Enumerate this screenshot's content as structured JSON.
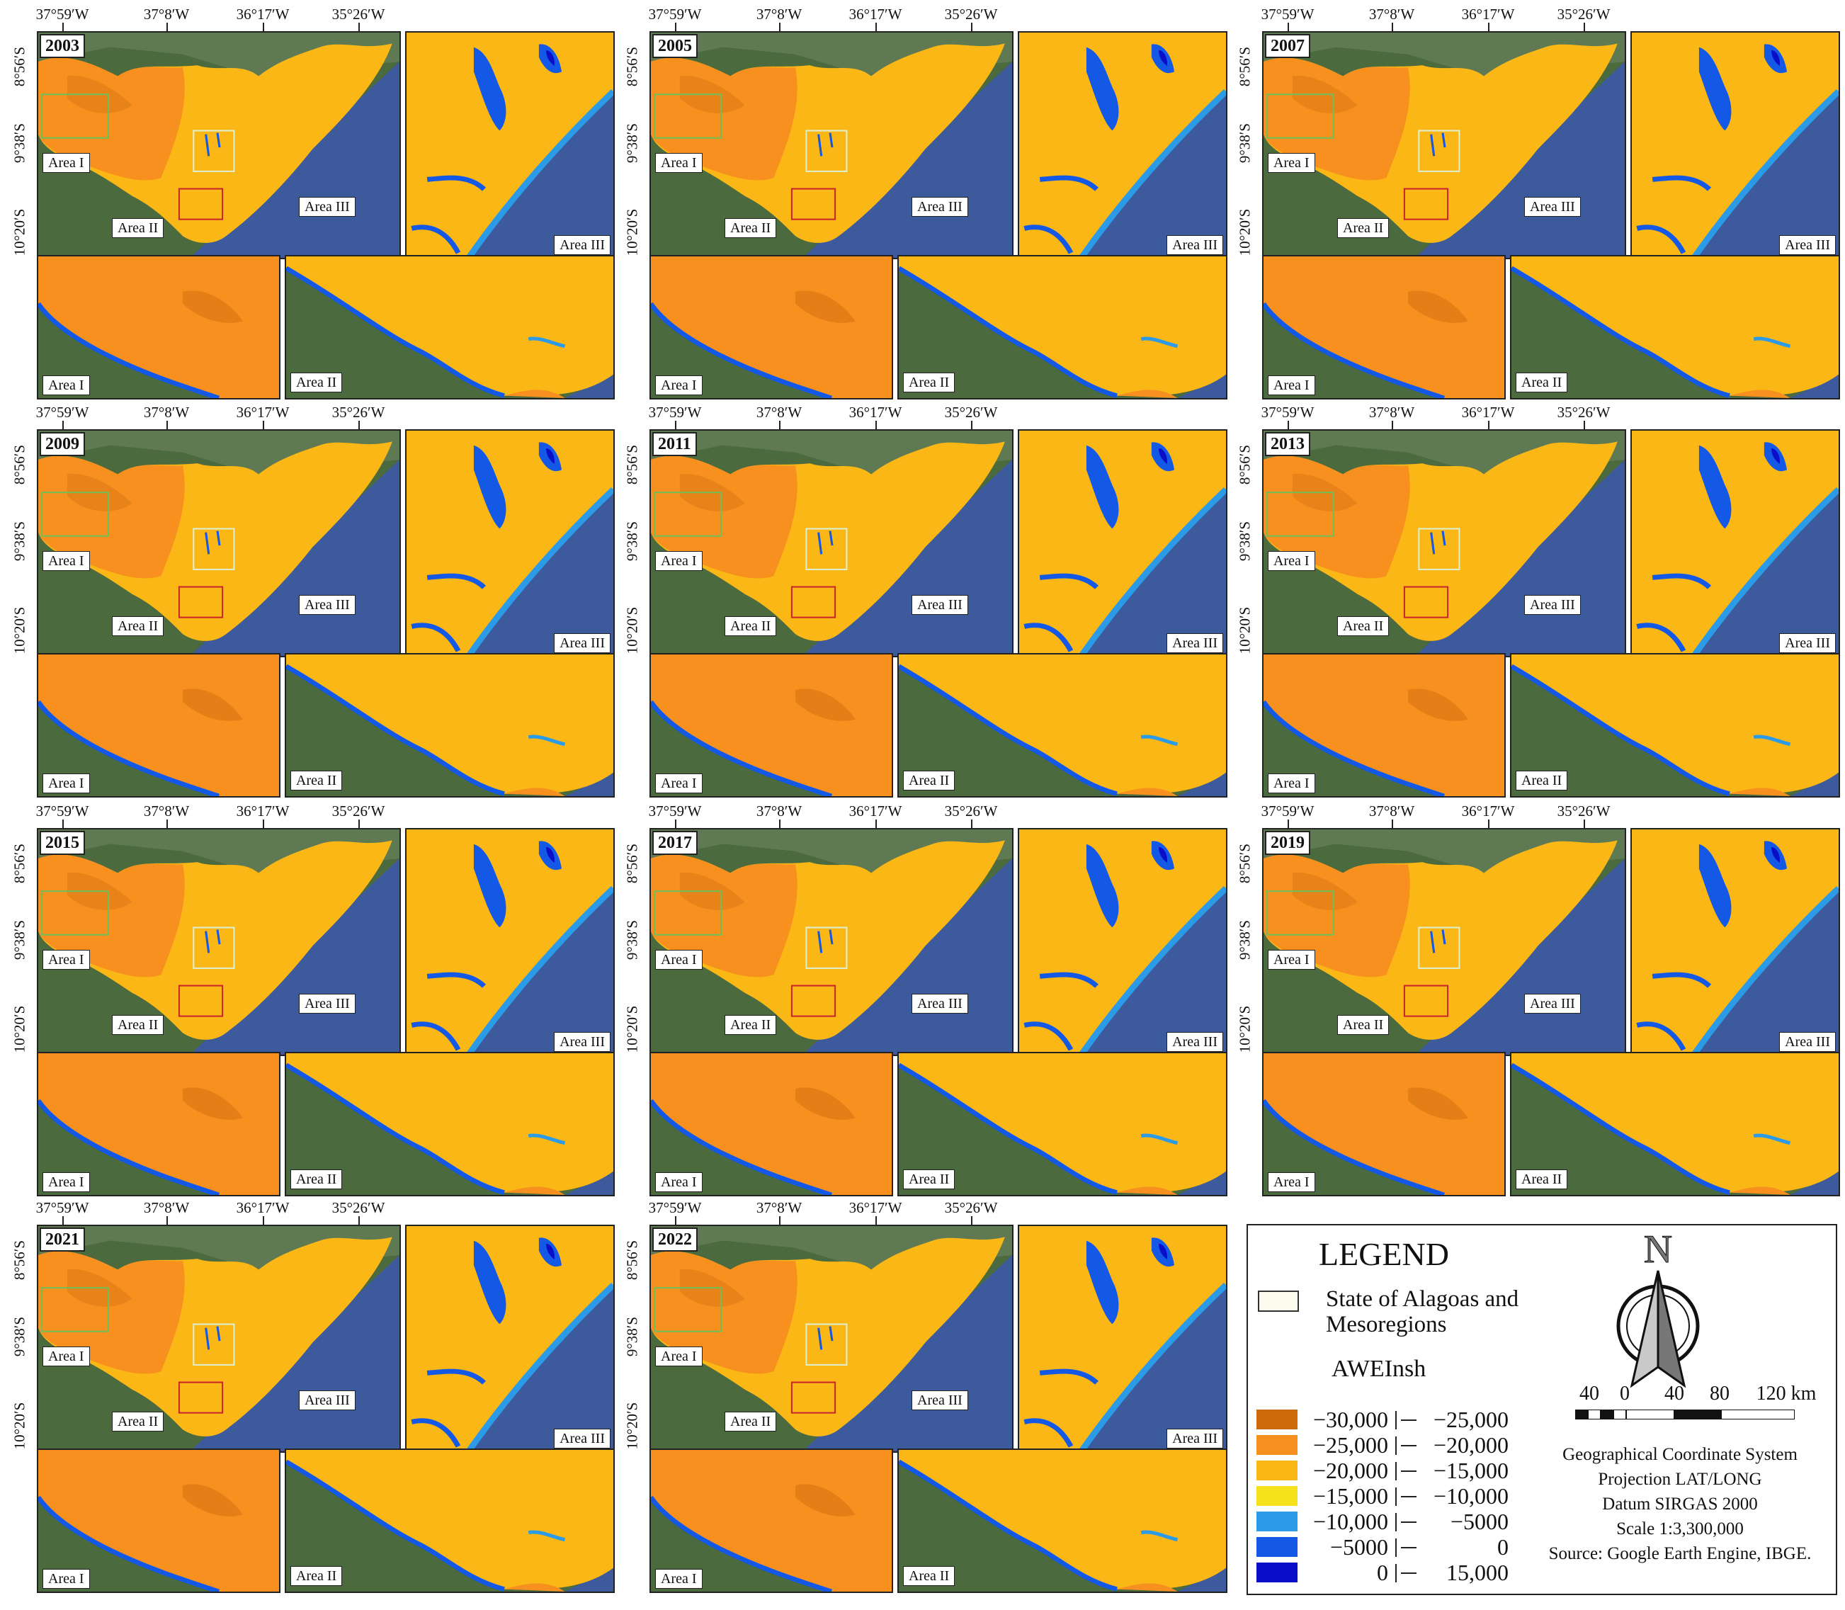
{
  "panels": [
    {
      "year": "2003"
    },
    {
      "year": "2005"
    },
    {
      "year": "2007"
    },
    {
      "year": "2009"
    },
    {
      "year": "2011"
    },
    {
      "year": "2013"
    },
    {
      "year": "2015"
    },
    {
      "year": "2017"
    },
    {
      "year": "2019"
    },
    {
      "year": "2021"
    },
    {
      "year": "2022"
    }
  ],
  "longitudes": [
    "37°59′W",
    "37°8′W",
    "36°17′W",
    "35°26′W"
  ],
  "latitudes": [
    "8°56′S",
    "9°38′S",
    "10°20′S"
  ],
  "area_labels": {
    "area1": "Area I",
    "area2": "Area II",
    "area3": "Area III"
  },
  "legend": {
    "title": "LEGEND",
    "state_label": "State of Alagoas and Mesoregions",
    "index_label": "AWEInsh",
    "classes": [
      {
        "low": "−30,000",
        "high": "−25,000",
        "color": "#cc6a0a"
      },
      {
        "low": "−25,000",
        "high": "−20,000",
        "color": "#f7901e"
      },
      {
        "low": "−20,000",
        "high": "−15,000",
        "color": "#fbb716"
      },
      {
        "low": "−15,000",
        "high": "−10,000",
        "color": "#f5e21b"
      },
      {
        "low": "−10,000",
        "high": "−5000",
        "color": "#2b9be8"
      },
      {
        "low": "−5000",
        "high": "0",
        "color": "#1458e6"
      },
      {
        "low": "0",
        "high": "15,000",
        "color": "#0a0ec9"
      }
    ],
    "north": "N",
    "scale_labels": [
      "40",
      "0",
      "40",
      "80",
      "120 km"
    ],
    "info_lines": [
      "Geographical Coordinate System",
      "Projection LAT/LONG",
      "Datum SIRGAS 2000",
      "Scale 1:3,300,000",
      "Source: Google Earth Engine, IBGE."
    ]
  },
  "colors": {
    "land": "#4d6b3f",
    "sea": "#3d5a9c",
    "state_mid": "#fbb716",
    "state_dark": "#f7901e",
    "water": "#1458e6"
  }
}
